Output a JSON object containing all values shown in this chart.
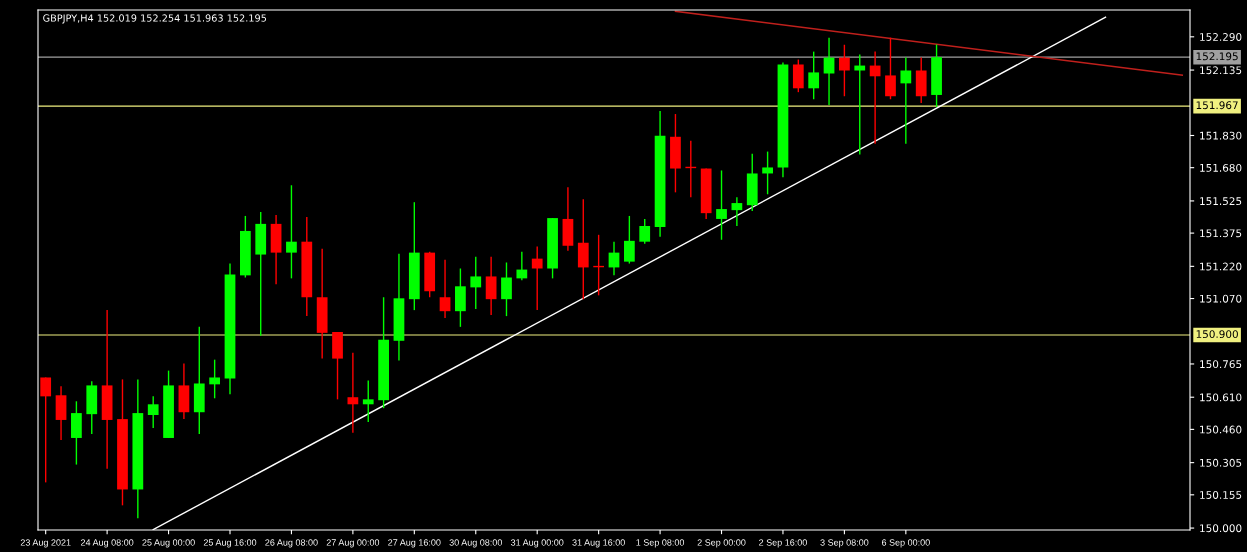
{
  "chart_data": {
    "type": "candlestick",
    "title": "GBPJPY,H4 152.019 152.254 151.963 152.195",
    "categories": [
      "23 Aug 2021",
      null,
      null,
      null,
      "24 Aug 08:00",
      null,
      null,
      null,
      "25 Aug 00:00",
      null,
      null,
      null,
      "25 Aug 16:00",
      null,
      null,
      null,
      "26 Aug 08:00",
      null,
      null,
      null,
      "27 Aug 00:00",
      null,
      null,
      null,
      "27 Aug 16:00",
      null,
      null,
      null,
      "30 Aug 08:00",
      null,
      null,
      null,
      "31 Aug 00:00",
      null,
      null,
      null,
      "31 Aug 16:00",
      null,
      null,
      null,
      "1 Sep 08:00",
      null,
      null,
      null,
      "2 Sep 00:00",
      null,
      null,
      null,
      "2 Sep 16:00",
      null,
      null,
      null,
      "3 Sep 08:00",
      null,
      null,
      null,
      "6 Sep 00:00",
      null,
      null,
      null,
      null,
      null,
      null,
      null,
      null,
      null,
      null,
      null,
      null,
      null,
      null,
      null,
      null,
      null,
      null
    ],
    "ohlc": [
      [
        150.702,
        150.702,
        150.213,
        150.614
      ],
      [
        150.619,
        150.661,
        150.411,
        150.504
      ],
      [
        150.42,
        150.591,
        150.296,
        150.536
      ],
      [
        150.531,
        150.684,
        150.439,
        150.665
      ],
      [
        150.665,
        151.016,
        150.277,
        150.504
      ],
      [
        150.508,
        150.693,
        150.106,
        150.18
      ],
      [
        150.18,
        150.693,
        150.046,
        150.536
      ],
      [
        150.527,
        150.614,
        150.467,
        150.577
      ],
      [
        150.42,
        150.734,
        150.42,
        150.665
      ],
      [
        150.665,
        150.767,
        150.508,
        150.54
      ],
      [
        150.54,
        150.938,
        150.439,
        150.674
      ],
      [
        150.67,
        150.785,
        150.605,
        150.702
      ],
      [
        150.697,
        151.233,
        150.624,
        151.182
      ],
      [
        151.178,
        151.455,
        151.168,
        151.385
      ],
      [
        151.275,
        151.473,
        150.896,
        151.418
      ],
      [
        151.418,
        151.459,
        151.136,
        151.284
      ],
      [
        151.284,
        151.598,
        151.164,
        151.335
      ],
      [
        151.335,
        151.45,
        150.988,
        151.076
      ],
      [
        151.076,
        151.302,
        150.79,
        150.91
      ],
      [
        150.914,
        150.914,
        150.6,
        150.79
      ],
      [
        150.61,
        150.817,
        150.444,
        150.577
      ],
      [
        150.577,
        150.688,
        150.494,
        150.6
      ],
      [
        150.596,
        151.076,
        150.559,
        150.878
      ],
      [
        150.873,
        151.279,
        150.781,
        151.071
      ],
      [
        151.067,
        151.519,
        151.016,
        151.284
      ],
      [
        151.284,
        151.288,
        151.076,
        151.104
      ],
      [
        151.076,
        151.251,
        150.979,
        151.011
      ],
      [
        151.011,
        151.21,
        150.938,
        151.127
      ],
      [
        151.122,
        151.265,
        151.021,
        151.173
      ],
      [
        151.173,
        151.265,
        150.993,
        151.067
      ],
      [
        151.067,
        151.238,
        150.988,
        151.168
      ],
      [
        151.164,
        151.288,
        151.155,
        151.205
      ],
      [
        151.256,
        151.312,
        151.016,
        151.21
      ],
      [
        151.21,
        151.445,
        151.164,
        151.445
      ],
      [
        151.441,
        151.589,
        151.293,
        151.316
      ],
      [
        151.33,
        151.533,
        151.067,
        151.215
      ],
      [
        151.219,
        151.367,
        151.085,
        151.219
      ],
      [
        151.215,
        151.335,
        151.178,
        151.284
      ],
      [
        151.242,
        151.455,
        151.233,
        151.339
      ],
      [
        151.335,
        151.441,
        151.325,
        151.408
      ],
      [
        151.404,
        151.944,
        151.358,
        151.829
      ],
      [
        151.824,
        151.93,
        151.565,
        151.676
      ],
      [
        151.681,
        151.805,
        151.542,
        151.681
      ],
      [
        151.676,
        151.676,
        151.441,
        151.468
      ],
      [
        151.441,
        151.667,
        151.344,
        151.487
      ],
      [
        151.482,
        151.542,
        151.408,
        151.515
      ],
      [
        151.505,
        151.745,
        151.478,
        151.653
      ],
      [
        151.653,
        151.755,
        151.556,
        151.681
      ],
      [
        151.681,
        152.17,
        151.635,
        152.161
      ],
      [
        152.161,
        152.184,
        152.032,
        152.05
      ],
      [
        152.05,
        152.221,
        151.999,
        152.124
      ],
      [
        152.119,
        152.286,
        151.972,
        152.193
      ],
      [
        152.193,
        152.253,
        152.013,
        152.133
      ],
      [
        152.133,
        152.207,
        151.741,
        152.156
      ],
      [
        152.156,
        152.221,
        151.792,
        152.106
      ],
      [
        152.11,
        152.286,
        151.999,
        152.013
      ],
      [
        152.073,
        152.193,
        151.792,
        152.133
      ],
      [
        152.133,
        152.193,
        151.981,
        152.013
      ],
      [
        152.019,
        152.254,
        151.963,
        152.195
      ],
      null,
      null,
      null,
      null,
      null,
      null,
      null,
      null,
      null,
      null,
      null,
      null,
      null,
      null,
      null,
      null
    ],
    "colors": [
      "#ff0000",
      "#ff0000",
      "#00ff00",
      "#00ff00",
      "#ff0000",
      "#ff0000",
      "#00ff00",
      "#00ff00",
      "#00ff00",
      "#ff0000",
      "#00ff00",
      "#00ff00",
      "#00ff00",
      "#00ff00",
      "#00ff00",
      "#ff0000",
      "#00ff00",
      "#ff0000",
      "#ff0000",
      "#ff0000",
      "#ff0000",
      "#00ff00",
      "#00ff00",
      "#00ff00",
      "#00ff00",
      "#ff0000",
      "#ff0000",
      "#00ff00",
      "#00ff00",
      "#ff0000",
      "#00ff00",
      "#00ff00",
      "#ff0000",
      "#00ff00",
      "#ff0000",
      "#ff0000",
      "#ff0000",
      "#00ff00",
      "#00ff00",
      "#00ff00",
      "#00ff00",
      "#ff0000",
      "#ff0000",
      "#ff0000",
      "#00ff00",
      "#00ff00",
      "#00ff00",
      "#00ff00",
      "#00ff00",
      "#ff0000",
      "#00ff00",
      "#00ff00",
      "#ff0000",
      "#00ff00",
      "#ff0000",
      "#ff0000",
      "#00ff00",
      "#ff0000",
      "#00ff00",
      null,
      null,
      null,
      null,
      null,
      null,
      null,
      null,
      null,
      null,
      null,
      null,
      null,
      null,
      null,
      null
    ],
    "series": [
      {
        "type": "line",
        "color": "#ffffff",
        "values": [
          null,
          null,
          null,
          null,
          null,
          null,
          null,
          149.993,
          null,
          null,
          null,
          null,
          null,
          null,
          null,
          null,
          null,
          null,
          null,
          null,
          null,
          null,
          null,
          null,
          null,
          null,
          null,
          null,
          null,
          null,
          null,
          null,
          null,
          null,
          null,
          null,
          null,
          null,
          null,
          null,
          null,
          null,
          null,
          null,
          null,
          null,
          null,
          null,
          null,
          null,
          null,
          null,
          null,
          null,
          null,
          null,
          null,
          null,
          null,
          null,
          null,
          null,
          null,
          null,
          null,
          null,
          null,
          null,
          null,
          152.381,
          null,
          null,
          null,
          null,
          null
        ]
      },
      {
        "type": "line",
        "color": "#c0201c",
        "values": [
          null,
          null,
          null,
          null,
          null,
          null,
          null,
          null,
          null,
          null,
          null,
          null,
          null,
          null,
          null,
          null,
          null,
          null,
          null,
          null,
          null,
          null,
          null,
          null,
          null,
          null,
          null,
          null,
          null,
          null,
          null,
          null,
          null,
          null,
          null,
          null,
          null,
          null,
          null,
          null,
          null,
          152.409,
          null,
          null,
          null,
          null,
          null,
          null,
          null,
          null,
          null,
          null,
          null,
          null,
          null,
          null,
          null,
          null,
          null,
          null,
          null,
          null,
          null,
          null,
          null,
          null,
          null,
          null,
          null,
          null,
          null,
          null,
          null,
          null,
          152.111
        ]
      }
    ],
    "ylim": [
      149.991,
      152.415
    ],
    "yticks": [
      {
        "value": 150.0,
        "label": "150.000"
      },
      150.155,
      150.305,
      {
        "value": 150.46,
        "label": "150.460"
      },
      {
        "value": 150.61,
        "label": "150.610"
      },
      150.765,
      {
        "value": 151.07,
        "label": "151.070"
      },
      {
        "value": 151.22,
        "label": "151.220"
      },
      151.375,
      151.525,
      {
        "value": 151.68,
        "label": "151.680"
      },
      {
        "value": 151.83,
        "label": "151.830"
      },
      152.135,
      {
        "value": 152.29,
        "label": "152.290"
      }
    ],
    "ref_lines": [
      {
        "axis": "y",
        "value": 152.195,
        "label": "152.195",
        "color": "#a0a0a0"
      },
      {
        "axis": "y",
        "value": 151.967,
        "label": "151.967",
        "color": "#f0f080"
      },
      {
        "axis": "y",
        "value": 150.9,
        "label": "150.900",
        "color": "#f0f080"
      }
    ],
    "grid": false,
    "legend": false
  }
}
